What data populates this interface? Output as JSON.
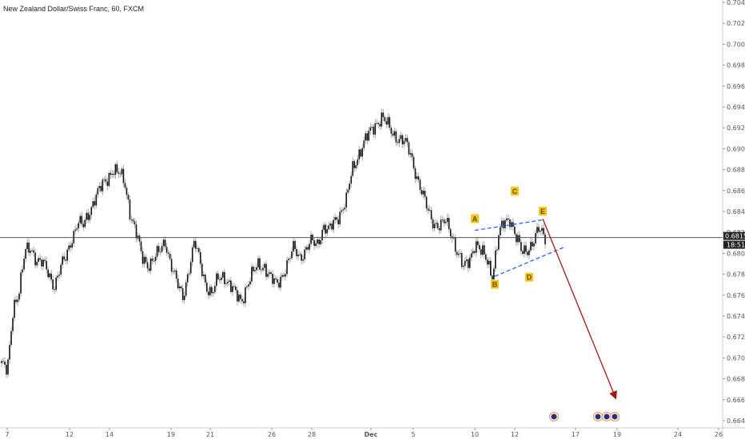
{
  "header": {
    "title": "New Zealand Dollar/Swiss Franc, 60, FXCM"
  },
  "chart_data": {
    "type": "candlestick",
    "symbol": "New Zealand Dollar/Swiss Franc",
    "interval": "60",
    "source": "FXCM",
    "ylim": [
      0.6636,
      0.7042
    ],
    "y_ticks": [
      "0.70400",
      "0.70200",
      "0.70000",
      "0.69800",
      "0.69600",
      "0.69400",
      "0.69200",
      "0.69000",
      "0.68800",
      "0.68600",
      "0.68400",
      "0.68200",
      "0.68000",
      "0.67800",
      "0.67600",
      "0.67400",
      "0.67200",
      "0.67000",
      "0.66800",
      "0.66600",
      "0.66400"
    ],
    "x_ticks": [
      "7",
      "12",
      "14",
      "19",
      "21",
      "26",
      "28",
      "Dec",
      "5",
      "10",
      "12",
      "17",
      "19",
      "24",
      "26"
    ],
    "close_series": [
      0.6695,
      0.6685,
      0.675,
      0.6765,
      0.68,
      0.6805,
      0.6795,
      0.679,
      0.678,
      0.677,
      0.6785,
      0.6795,
      0.6815,
      0.683,
      0.6825,
      0.684,
      0.6855,
      0.6862,
      0.687,
      0.6882,
      0.6876,
      0.6868,
      0.684,
      0.682,
      0.6795,
      0.679,
      0.6795,
      0.68,
      0.6812,
      0.679,
      0.677,
      0.6758,
      0.6785,
      0.681,
      0.679,
      0.677,
      0.676,
      0.6775,
      0.678,
      0.677,
      0.676,
      0.6755,
      0.677,
      0.678,
      0.679,
      0.6788,
      0.6775,
      0.677,
      0.678,
      0.679,
      0.6805,
      0.6798,
      0.6802,
      0.681,
      0.681,
      0.6825,
      0.682,
      0.6832,
      0.684,
      0.685,
      0.688,
      0.6895,
      0.6905,
      0.6915,
      0.6925,
      0.693,
      0.6922,
      0.6915,
      0.691,
      0.6905,
      0.6895,
      0.6875,
      0.6855,
      0.684,
      0.683,
      0.6825,
      0.683,
      0.682,
      0.68,
      0.6785,
      0.6795,
      0.681,
      0.68,
      0.6795,
      0.678,
      0.6815,
      0.683,
      0.6835,
      0.6815,
      0.68,
      0.6805,
      0.6812,
      0.6822,
      0.6815
    ],
    "last_price": "0.68151",
    "countdown": "18:51",
    "wave_labels": [
      {
        "label": "A",
        "x": "Dec 10",
        "y": 0.6826
      },
      {
        "label": "B",
        "x": "Dec 11",
        "y": 0.678
      },
      {
        "label": "C",
        "x": "Dec 12",
        "y": 0.685
      },
      {
        "label": "D",
        "x": "Dec 13",
        "y": 0.6786
      },
      {
        "label": "E",
        "x": "Dec 14",
        "y": 0.6833
      }
    ],
    "trendlines": [
      {
        "name": "upper",
        "from": {
          "x": "Dec 10",
          "y": 0.6822
        },
        "to": {
          "x": "Dec 14",
          "y": 0.6832
        }
      },
      {
        "name": "lower",
        "from": {
          "x": "Dec 11",
          "y": 0.6778
        },
        "to": {
          "x": "Dec 15",
          "y": 0.6806
        }
      }
    ],
    "projection": {
      "from": {
        "x": "Dec 14",
        "y": 0.6833
      },
      "to": {
        "x": "Dec 19",
        "y": 0.6662
      }
    },
    "event_markers_count": 4,
    "colors": {
      "candle": "#111111",
      "wick": "#999999",
      "trendline": "#2962ff",
      "projection": "#a31616",
      "label_bg": "#f5c518",
      "price_line": "#555555"
    }
  }
}
